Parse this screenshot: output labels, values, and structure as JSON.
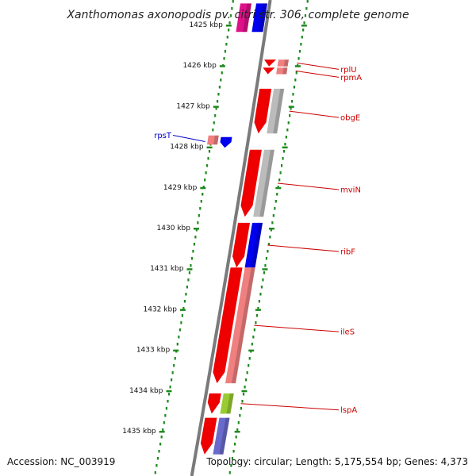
{
  "title": "Xanthomonas axonopodis pv. citri str. 306, complete genome",
  "footer": {
    "accession": "Accession: NC_003919",
    "topology": "Topology: circular; Length: 5,175,554 bp; Genes: 4,373"
  },
  "colors": {
    "backbone": "#7a7a7a",
    "tick_dots": "#1e8a1e",
    "forward_label": "#cc0000",
    "reverse_label": "#0000cc"
  },
  "ticks": [
    {
      "kbp": 1425,
      "label": "1425 kbp"
    },
    {
      "kbp": 1426,
      "label": "1426 kbp"
    },
    {
      "kbp": 1427,
      "label": "1427 kbp"
    },
    {
      "kbp": 1428,
      "label": "1428 kbp"
    },
    {
      "kbp": 1429,
      "label": "1429 kbp"
    },
    {
      "kbp": 1430,
      "label": "1430 kbp"
    },
    {
      "kbp": 1431,
      "label": "1431 kbp"
    },
    {
      "kbp": 1432,
      "label": "1432 kbp"
    },
    {
      "kbp": 1433,
      "label": "1433 kbp"
    },
    {
      "kbp": 1434,
      "label": "1434 kbp"
    },
    {
      "kbp": 1435,
      "label": "1435 kbp"
    }
  ],
  "genes": [
    {
      "name": "rplU",
      "strand": "forward",
      "start": 1425.88,
      "end": 1426.05,
      "color": "#ee0000",
      "cog_color": "#f08080"
    },
    {
      "name": "rpmA",
      "strand": "forward",
      "start": 1426.08,
      "end": 1426.24,
      "color": "#ee0000",
      "cog_color": "#f08080"
    },
    {
      "name": "obgE",
      "strand": "forward",
      "start": 1426.6,
      "end": 1427.7,
      "color": "#ee0000",
      "cog_color": "#bbbbbb"
    },
    {
      "name": "rpsT",
      "strand": "reverse",
      "start": 1427.75,
      "end": 1428.05,
      "color": "#f08080",
      "cog_color": "#0000ee"
    },
    {
      "name": "mviN",
      "strand": "forward",
      "start": 1428.1,
      "end": 1429.75,
      "color": "#ee0000",
      "cog_color": "#bbbbbb"
    },
    {
      "name": "ribF",
      "strand": "forward",
      "start": 1429.9,
      "end": 1431.0,
      "color": "#ee0000",
      "cog_color": "#0000ee"
    },
    {
      "name": "ileS",
      "strand": "forward",
      "start": 1431.0,
      "end": 1433.85,
      "color": "#ee0000",
      "cog_color": "#f08080"
    },
    {
      "name": "lspA",
      "strand": "forward",
      "start": 1434.1,
      "end": 1434.6,
      "color": "#ee0000",
      "cog_color": "#99cc33"
    },
    {
      "name": "",
      "strand": "forward",
      "start": 1434.7,
      "end": 1435.6,
      "color": "#ee0000",
      "cog_color": "#6a6acc"
    }
  ],
  "top_genes": [
    {
      "name": "",
      "start": 1424.5,
      "end": 1425.2,
      "color": "#dd1188",
      "cog_color": "#0000ee"
    }
  ]
}
